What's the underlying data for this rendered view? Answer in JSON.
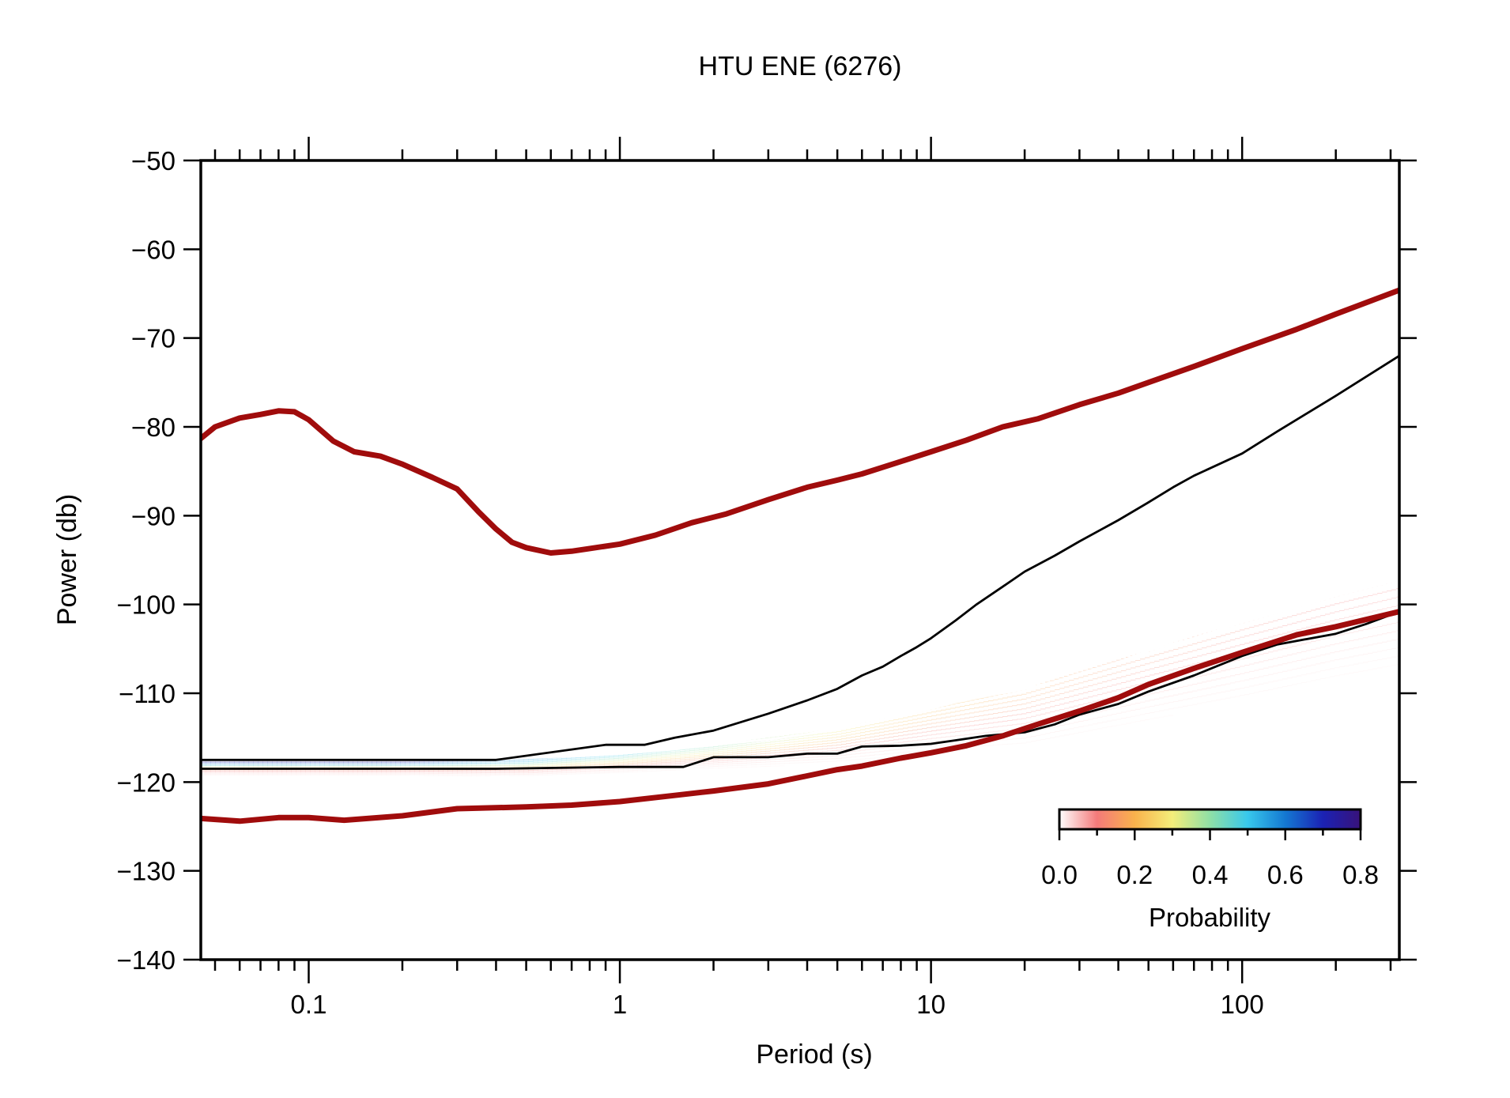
{
  "chart_data": {
    "type": "line",
    "title": "HTU ENE (6276)",
    "xlabel": "Period (s)",
    "ylabel": "Power (db)",
    "x_scale": "log",
    "xlim": [
      0.045,
      320
    ],
    "ylim": [
      -140,
      -50
    ],
    "x_tick_labels": [
      "0.1",
      "1",
      "10",
      "100"
    ],
    "y_tick_labels": [
      "−50",
      "−60",
      "−70",
      "−80",
      "−90",
      "−100",
      "−110",
      "−120",
      "−130",
      "−140"
    ],
    "grid": false,
    "colors": {
      "noise_model": "#a00c0c",
      "percentile": "#000000",
      "mode": "#ffffff"
    },
    "series": [
      {
        "x": [
          0.045,
          0.05,
          0.06,
          0.07,
          0.08,
          0.09,
          0.1,
          0.12,
          0.14,
          0.17,
          0.2,
          0.25,
          0.3,
          0.35,
          0.4,
          0.45,
          0.5,
          0.6,
          0.7,
          0.8,
          1,
          1.3,
          1.7,
          2.2,
          3,
          4,
          5,
          6,
          8,
          10,
          13,
          17,
          22,
          30,
          40,
          50,
          70,
          100,
          150,
          200,
          320
        ],
        "y": [
          -81.3,
          -80,
          -79,
          -78.6,
          -78.2,
          -78.3,
          -79.2,
          -81.6,
          -82.8,
          -83.3,
          -84.2,
          -85.7,
          -87,
          -89.5,
          -91.5,
          -93,
          -93.6,
          -94.2,
          -94,
          -93.7,
          -93.2,
          -92.2,
          -90.8,
          -89.8,
          -88.2,
          -86.8,
          -86,
          -85.3,
          -83.9,
          -82.8,
          -81.5,
          -80,
          -79.1,
          -77.5,
          -76.2,
          -75,
          -73.2,
          -71.2,
          -69,
          -67.3,
          -64.6
        ]
      },
      {
        "x": [
          0.045,
          0.06,
          0.08,
          0.1,
          0.13,
          0.2,
          0.3,
          0.5,
          0.7,
          1,
          1.5,
          2,
          3,
          4,
          5,
          6,
          8,
          10,
          13,
          17,
          22,
          30,
          40,
          50,
          70,
          100,
          150,
          200,
          320
        ],
        "y": [
          -124.1,
          -124.4,
          -124,
          -124,
          -124.3,
          -123.8,
          -123,
          -122.8,
          -122.6,
          -122.2,
          -121.5,
          -121,
          -120.2,
          -119.3,
          -118.6,
          -118.2,
          -117.3,
          -116.7,
          -115.9,
          -114.8,
          -113.5,
          -112,
          -110.5,
          -109,
          -107.2,
          -105.4,
          -103.4,
          -102.5,
          -100.8
        ]
      },
      {
        "x": [
          0.045,
          0.1,
          0.2,
          0.4,
          0.9,
          1,
          1.2,
          1.5,
          2,
          3,
          4,
          5,
          6,
          7,
          8,
          9,
          10,
          12,
          14,
          17,
          20,
          25,
          30,
          40,
          50,
          60,
          70,
          100,
          130,
          200,
          320
        ],
        "y": [
          -117.5,
          -117.5,
          -117.5,
          -117.5,
          -115.8,
          -115.8,
          -115.8,
          -115,
          -114.2,
          -112.3,
          -110.8,
          -109.5,
          -108,
          -107,
          -105.8,
          -104.8,
          -103.8,
          -101.8,
          -100,
          -98,
          -96.3,
          -94.5,
          -92.9,
          -90.5,
          -88.5,
          -86.8,
          -85.5,
          -83,
          -80.5,
          -76.5,
          -72
        ]
      },
      {
        "x": [
          0.045,
          0.1,
          0.2,
          0.4,
          1,
          1.6,
          2,
          3,
          4,
          5,
          6,
          8,
          10,
          12,
          15,
          20,
          25,
          30,
          40,
          50,
          70,
          100,
          130,
          200,
          250,
          320
        ],
        "y": [
          -118.5,
          -118.5,
          -118.5,
          -118.5,
          -118.3,
          -118.3,
          -117.2,
          -117.2,
          -116.8,
          -116.8,
          -116,
          -115.9,
          -115.7,
          -115.3,
          -114.8,
          -114.4,
          -113.5,
          -112.4,
          -111.2,
          -109.8,
          -108,
          -105.8,
          -104.5,
          -103.3,
          -102.2,
          -100.8
        ]
      },
      {
        "x": [
          0.045,
          0.1,
          0.2,
          0.4,
          0.8,
          1,
          1.5,
          2,
          3,
          4,
          5,
          6,
          8,
          10,
          12,
          15,
          20,
          25,
          30,
          40,
          50,
          70,
          100,
          150,
          200,
          320
        ],
        "y": [
          -117.5,
          -117.5,
          -117.5,
          -117.4,
          -117,
          -116.8,
          -116.3,
          -115.8,
          -115.2,
          -114.6,
          -114,
          -113.5,
          -112.5,
          -111.7,
          -111,
          -110.3,
          -109.5,
          -108.7,
          -107.8,
          -106.5,
          -105.2,
          -103.8,
          -102,
          -100.3,
          -99,
          -97.2
        ]
      }
    ],
    "colorbar": {
      "label": "Probability",
      "range": [
        0,
        0.8
      ],
      "tick_labels": [
        "0.0",
        "0.2",
        "0.4",
        "0.6",
        "0.8"
      ],
      "stops": [
        "#ffffff",
        "#f47a7a",
        "#f9b24c",
        "#f4ee7a",
        "#8fe0a6",
        "#38c8ec",
        "#1478d2",
        "#1b22b4",
        "#38127a"
      ],
      "placement": "bottom-right"
    },
    "probability_density": {
      "mode_x": [
        0.045,
        0.2,
        0.5,
        1,
        2,
        5,
        10,
        20,
        50,
        100,
        200,
        320
      ],
      "mode_y": [
        -117.5,
        -117.5,
        -117.4,
        -116.8,
        -115.8,
        -114,
        -111.7,
        -109.5,
        -105.2,
        -102,
        -99,
        -97.2
      ],
      "spread_db": [
        1.2,
        1.2,
        1.4,
        1.6,
        2,
        3,
        4.2,
        5.5,
        7,
        8.2,
        9,
        9.5
      ],
      "peak_probability": [
        0.75,
        0.75,
        0.55,
        0.5,
        0.42,
        0.3,
        0.22,
        0.18,
        0.14,
        0.12,
        0.1,
        0.09
      ]
    }
  }
}
